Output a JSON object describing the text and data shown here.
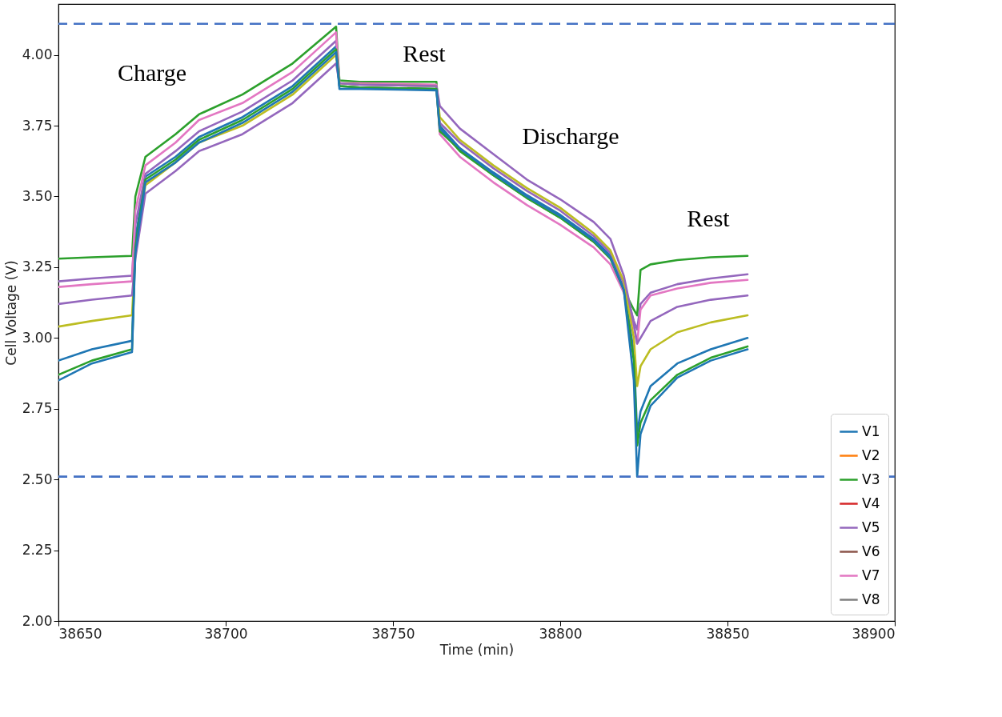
{
  "chart_data": {
    "type": "line",
    "xlabel": "Time (min)",
    "ylabel": "Cell Voltage (V)",
    "x": [
      38650,
      38660,
      38672,
      38673,
      38676,
      38685,
      38692,
      38705,
      38720,
      38733,
      38734,
      38740,
      38763,
      38764,
      38770,
      38780,
      38790,
      38800,
      38810,
      38815,
      38819,
      38822,
      38823,
      38824,
      38827,
      38835,
      38845,
      38856
    ],
    "xlim": [
      38650,
      38900
    ],
    "xticks": [
      38650,
      38700,
      38750,
      38800,
      38850,
      38900
    ],
    "ylim": [
      2.0,
      4.18
    ],
    "yticks": [
      {
        "value": 2.0,
        "label": "2.00"
      },
      {
        "value": 2.25,
        "label": "2.25"
      },
      {
        "value": 2.5,
        "label": "2.50"
      },
      {
        "value": 2.75,
        "label": "2.75"
      },
      {
        "value": 3.0,
        "label": "3.00"
      },
      {
        "value": 3.25,
        "label": "3.25"
      },
      {
        "value": 3.5,
        "label": "3.50"
      },
      {
        "value": 3.75,
        "label": "3.75"
      },
      {
        "value": 4.0,
        "label": "4.00"
      }
    ],
    "grid": false,
    "legend": "bottom right",
    "marker": "none",
    "line_style": "solid",
    "series": [
      {
        "name": "V1",
        "color": "#1f77b4",
        "values": [
          2.92,
          2.96,
          2.99,
          3.35,
          3.57,
          3.64,
          3.71,
          3.78,
          3.89,
          4.03,
          3.89,
          3.885,
          3.88,
          3.75,
          3.67,
          3.585,
          3.505,
          3.435,
          3.35,
          3.29,
          3.18,
          2.95,
          2.66,
          2.74,
          2.83,
          2.91,
          2.96,
          3.0
        ]
      },
      {
        "name": "V2",
        "color": "#ff7f0e",
        "values": [
          null,
          null,
          null,
          null,
          null,
          null,
          null,
          null,
          null,
          null,
          null,
          null,
          null,
          null,
          null,
          null,
          null,
          null,
          null,
          null,
          null,
          null,
          null,
          null,
          null,
          null,
          null,
          null
        ]
      },
      {
        "name": "V3",
        "color": "#2ca02c",
        "values": [
          3.28,
          3.285,
          3.29,
          3.5,
          3.64,
          3.72,
          3.79,
          3.86,
          3.97,
          4.1,
          3.91,
          3.905,
          3.905,
          3.74,
          3.66,
          3.575,
          3.495,
          3.425,
          3.34,
          3.285,
          3.17,
          3.1,
          3.08,
          3.24,
          3.26,
          3.275,
          3.285,
          3.29
        ]
      },
      {
        "name": "V4",
        "color": "#d62728",
        "values": [
          null,
          null,
          null,
          null,
          null,
          null,
          null,
          null,
          null,
          null,
          null,
          null,
          null,
          null,
          null,
          null,
          null,
          null,
          null,
          null,
          null,
          null,
          null,
          null,
          null,
          null,
          null,
          null
        ]
      },
      {
        "name": "V5",
        "color": "#9467bd",
        "values": [
          3.2,
          3.21,
          3.22,
          3.4,
          3.58,
          3.66,
          3.73,
          3.8,
          3.91,
          4.05,
          3.9,
          3.895,
          3.89,
          3.76,
          3.69,
          3.6,
          3.52,
          3.45,
          3.36,
          3.3,
          3.19,
          3.06,
          3.03,
          3.12,
          3.16,
          3.19,
          3.21,
          3.225
        ]
      },
      {
        "name": "V6",
        "color": "#8c564b",
        "values": [
          null,
          null,
          null,
          null,
          null,
          null,
          null,
          null,
          null,
          null,
          null,
          null,
          null,
          null,
          null,
          null,
          null,
          null,
          null,
          null,
          null,
          null,
          null,
          null,
          null,
          null,
          null,
          null
        ]
      },
      {
        "name": "V7",
        "color": "#e377c2",
        "values": [
          3.18,
          3.19,
          3.2,
          3.45,
          3.61,
          3.69,
          3.77,
          3.83,
          3.94,
          4.08,
          3.9,
          3.9,
          3.895,
          3.72,
          3.64,
          3.55,
          3.47,
          3.4,
          3.32,
          3.26,
          3.16,
          3.04,
          2.98,
          3.1,
          3.15,
          3.175,
          3.195,
          3.205
        ]
      },
      {
        "name": "V8",
        "color": "#7f7f7f",
        "values": [
          null,
          null,
          null,
          null,
          null,
          null,
          null,
          null,
          null,
          null,
          null,
          null,
          null,
          null,
          null,
          null,
          null,
          null,
          null,
          null,
          null,
          null,
          null,
          null,
          null,
          null,
          null,
          null
        ]
      },
      {
        "color": "#bcbd22",
        "values": [
          3.04,
          3.06,
          3.08,
          3.3,
          3.54,
          3.62,
          3.69,
          3.75,
          3.86,
          4.0,
          3.9,
          3.895,
          3.89,
          3.78,
          3.7,
          3.61,
          3.53,
          3.46,
          3.37,
          3.31,
          3.2,
          3.0,
          2.83,
          2.9,
          2.96,
          3.02,
          3.055,
          3.08
        ]
      },
      {
        "color": "#9467bd",
        "values": [
          3.12,
          3.135,
          3.15,
          3.28,
          3.51,
          3.59,
          3.66,
          3.72,
          3.83,
          3.97,
          3.9,
          3.895,
          3.89,
          3.82,
          3.74,
          3.65,
          3.56,
          3.49,
          3.41,
          3.35,
          3.22,
          3.05,
          2.98,
          3.0,
          3.06,
          3.11,
          3.135,
          3.15
        ]
      },
      {
        "color": "#2ca02c",
        "values": [
          2.87,
          2.92,
          2.96,
          3.32,
          3.56,
          3.63,
          3.7,
          3.77,
          3.88,
          4.02,
          3.89,
          3.885,
          3.88,
          3.73,
          3.665,
          3.575,
          3.495,
          3.425,
          3.34,
          3.28,
          3.17,
          2.92,
          2.62,
          2.7,
          2.78,
          2.87,
          2.93,
          2.97
        ]
      },
      {
        "color": "#1f77b4",
        "values": [
          2.85,
          2.91,
          2.95,
          3.3,
          3.55,
          3.62,
          3.69,
          3.76,
          3.87,
          4.01,
          3.88,
          3.88,
          3.875,
          3.74,
          3.67,
          3.58,
          3.5,
          3.43,
          3.345,
          3.285,
          3.17,
          2.85,
          2.51,
          2.66,
          2.76,
          2.86,
          2.92,
          2.96
        ]
      }
    ],
    "ref_lines": [
      {
        "axis": "y",
        "value": 4.11,
        "color": "#4472c4",
        "line_style": "dashed"
      },
      {
        "axis": "y",
        "value": 2.51,
        "color": "#4472c4",
        "line_style": "dashed"
      }
    ],
    "annotations": [
      "Charge",
      "Rest",
      "Discharge",
      "Rest"
    ]
  }
}
